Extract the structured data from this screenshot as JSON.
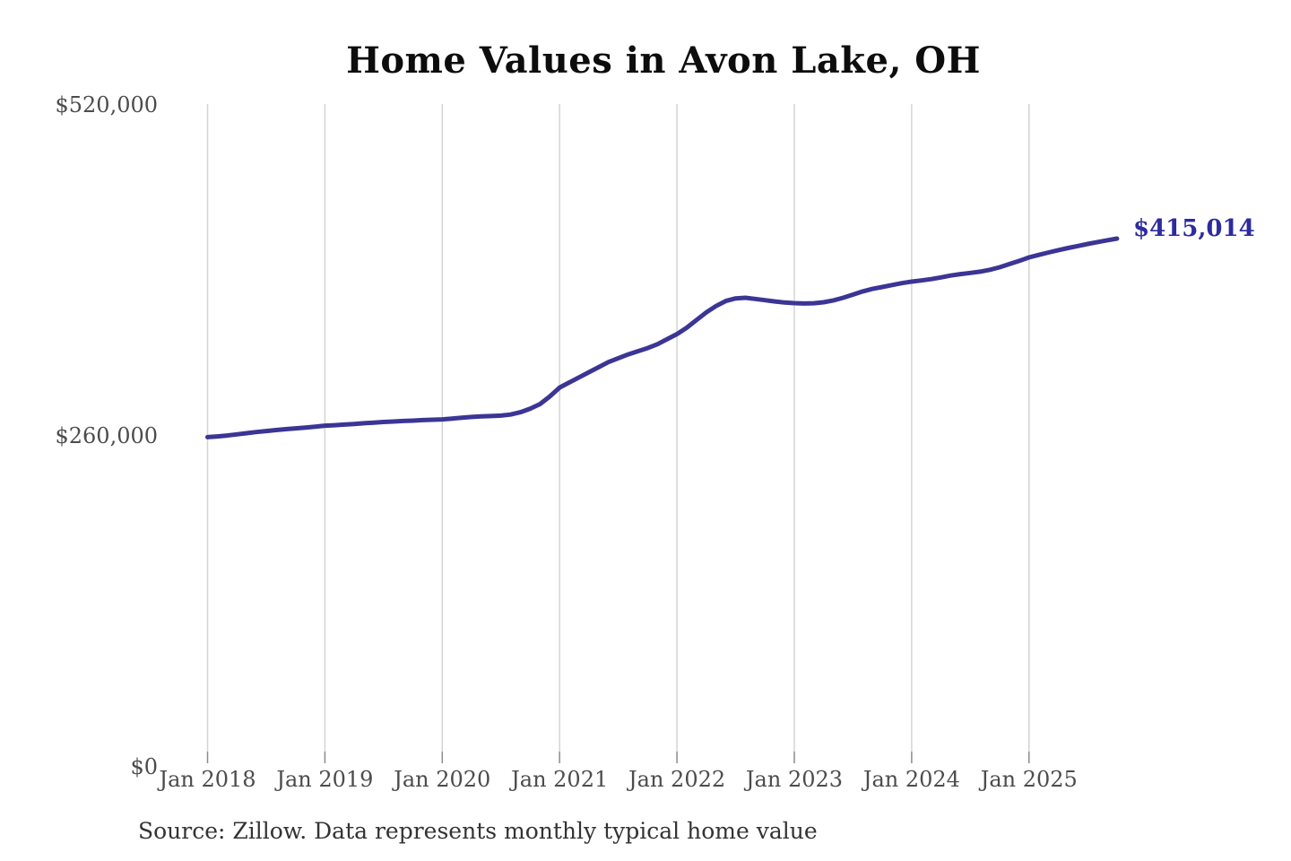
{
  "title": "Home Values in Avon Lake, OH",
  "source_note": "Source: Zillow. Data represents monthly typical home value",
  "latest_value_label": "$415,014",
  "colors": {
    "line": "#3b3596",
    "latest_value_label": "#2d2b9e",
    "gridline": "#d4d4d4",
    "tick": "#8c8c8c",
    "axis_text": "#4c4c4c",
    "title_text": "#0d0d0d",
    "source_text": "#333333",
    "background": "#ffffff"
  },
  "chart_data": {
    "type": "line",
    "title": "Home Values in Avon Lake, OH",
    "series_name": "Monthly typical home value",
    "x_start_month": "2018-01",
    "x_end_month": "2025-10",
    "x_tick_labels": [
      "Jan 2018",
      "Jan 2019",
      "Jan 2020",
      "Jan 2021",
      "Jan 2022",
      "Jan 2023",
      "Jan 2024",
      "Jan 2025"
    ],
    "y_ticks": [
      {
        "value": 0,
        "label": "$0"
      },
      {
        "value": 260000,
        "label": "$260,000"
      },
      {
        "value": 520000,
        "label": "$520,000"
      }
    ],
    "ylim": [
      0,
      520000
    ],
    "grid": "vertical-only",
    "legend": "none",
    "final_value": 415014,
    "final_value_label": "$415,014",
    "values": [
      259000,
      259600,
      260300,
      261200,
      262100,
      263000,
      263800,
      264600,
      265300,
      265900,
      266500,
      267200,
      268000,
      268400,
      268900,
      269400,
      269900,
      270400,
      270900,
      271300,
      271700,
      272000,
      272400,
      272700,
      273000,
      273600,
      274300,
      274900,
      275300,
      275600,
      275900,
      276800,
      278600,
      281400,
      285000,
      291000,
      298000,
      302000,
      306000,
      310000,
      314000,
      318000,
      321000,
      324000,
      326500,
      329000,
      332000,
      336000,
      340000,
      345000,
      351000,
      357000,
      362000,
      366000,
      368000,
      368500,
      367600,
      366600,
      365600,
      364800,
      364300,
      364000,
      364200,
      365000,
      366500,
      368500,
      371000,
      373500,
      375500,
      377000,
      378500,
      380000,
      381200,
      382100,
      383200,
      384500,
      386000,
      387100,
      388000,
      389000,
      390500,
      392500,
      395000,
      397500,
      400200,
      402200,
      404100,
      405900,
      407600,
      409200,
      410800,
      412300,
      413700,
      415014
    ]
  }
}
